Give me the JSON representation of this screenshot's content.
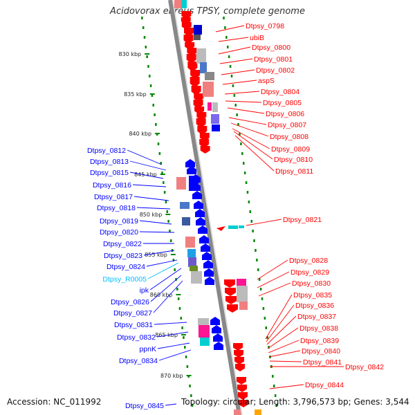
{
  "title": "Acidovorax ebreus TPSY, complete genome",
  "accession": "Accession: NC_011992",
  "summary": "Topology: circular; Length: 3,796,573 bp; Genes: 3,544",
  "colors": {
    "forward": "#ff0000",
    "reverse": "#0000ff",
    "rna": "#00bfff",
    "backbone": "#888888",
    "tick_dots": "#008800"
  },
  "scale_ticks": [
    "830 kbp",
    "835 kbp",
    "840 kbp",
    "845 kbp",
    "850 kbp",
    "855 kbp",
    "860 kbp",
    "865 kbp",
    "870 kbp"
  ],
  "right_labels": [
    "Dtpsy_0798",
    "ubiB",
    "Dtpsy_0800",
    "Dtpsy_0801",
    "Dtpsy_0802",
    "aspS",
    "Dtpsy_0804",
    "Dtpsy_0805",
    "Dtpsy_0806",
    "Dtpsy_0807",
    "Dtpsy_0808",
    "Dtpsy_0809",
    "Dtpsy_0810",
    "Dtpsy_0811",
    "Dtpsy_0821",
    "Dtpsy_0828",
    "Dtpsy_0829",
    "Dtpsy_0830",
    "Dtpsy_0835",
    "Dtpsy_0836",
    "Dtpsy_0837",
    "Dtpsy_0838",
    "Dtpsy_0839",
    "Dtpsy_0840",
    "Dtpsy_0841",
    "Dtpsy_0842",
    "Dtpsy_0844"
  ],
  "left_labels": [
    "Dtpsy_0812",
    "Dtpsy_0813",
    "Dtpsy_0815",
    "Dtpsy_0816",
    "Dtpsy_0817",
    "Dtpsy_0818",
    "Dtpsy_0819",
    "Dtpsy_0820",
    "Dtpsy_0822",
    "Dtpsy_0823",
    "Dtpsy_0824",
    "Dtpsy_R0005",
    "ipk",
    "Dtpsy_0826",
    "Dtpsy_0827",
    "Dtpsy_0831",
    "Dtpsy_0832",
    "ppnK",
    "Dtpsy_0834",
    "Dtpsy_0845"
  ]
}
